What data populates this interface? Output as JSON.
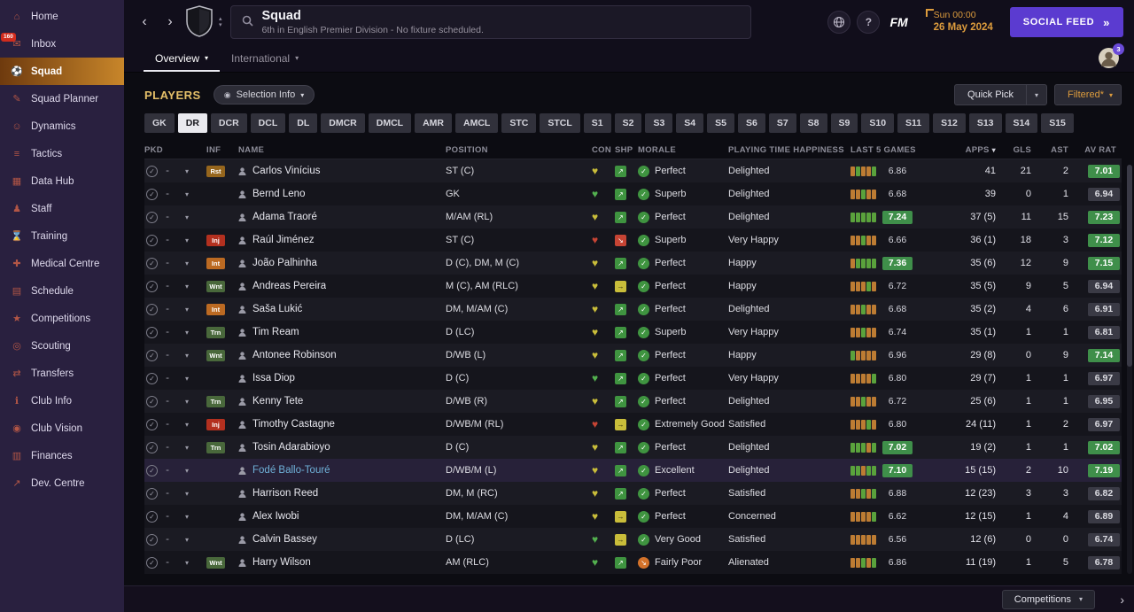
{
  "colors": {
    "accent_amber": "#dd9c3d",
    "accent_purple": "#5b3bd0",
    "rating_green": "#3f8f4a",
    "rating_gray": "#3a3a45"
  },
  "sidebar": {
    "items": [
      {
        "label": "Home",
        "icon": "home-icon",
        "glyph": "⌂"
      },
      {
        "label": "Inbox",
        "icon": "inbox-icon",
        "glyph": "✉",
        "badge": "160"
      },
      {
        "label": "Squad",
        "icon": "squad-icon",
        "glyph": "⚽",
        "active": true
      },
      {
        "label": "Squad Planner",
        "icon": "squad-planner-icon",
        "glyph": "✎"
      },
      {
        "label": "Dynamics",
        "icon": "dynamics-icon",
        "glyph": "☺"
      },
      {
        "label": "Tactics",
        "icon": "tactics-icon",
        "glyph": "≡"
      },
      {
        "label": "Data Hub",
        "icon": "data-hub-icon",
        "glyph": "▦"
      },
      {
        "label": "Staff",
        "icon": "staff-icon",
        "glyph": "♟"
      },
      {
        "label": "Training",
        "icon": "training-icon",
        "glyph": "⌛"
      },
      {
        "label": "Medical Centre",
        "icon": "medical-centre-icon",
        "glyph": "✚"
      },
      {
        "label": "Schedule",
        "icon": "schedule-icon",
        "glyph": "▤"
      },
      {
        "label": "Competitions",
        "icon": "competitions-icon",
        "glyph": "★"
      },
      {
        "label": "Scouting",
        "icon": "scouting-icon",
        "glyph": "◎"
      },
      {
        "label": "Transfers",
        "icon": "transfers-icon",
        "glyph": "⇄"
      },
      {
        "label": "Club Info",
        "icon": "club-info-icon",
        "glyph": "ℹ"
      },
      {
        "label": "Club Vision",
        "icon": "club-vision-icon",
        "glyph": "◉"
      },
      {
        "label": "Finances",
        "icon": "finances-icon",
        "glyph": "▥"
      },
      {
        "label": "Dev. Centre",
        "icon": "dev-centre-icon",
        "glyph": "↗"
      }
    ]
  },
  "header": {
    "title": "Squad",
    "subtitle": "6th in English Premier Division - No fixture scheduled.",
    "date_time": "Sun 00:00",
    "date": "26 May 2024",
    "social_feed_label": "SOCIAL FEED",
    "fm_label": "FM",
    "help_label": "?",
    "profile_badge": "3"
  },
  "tabs": [
    {
      "label": "Overview",
      "active": true
    },
    {
      "label": "International",
      "active": false
    }
  ],
  "toolbar": {
    "section_title": "PLAYERS",
    "selection_info_label": "Selection Info",
    "quick_pick_label": "Quick Pick",
    "filtered_label": "Filtered*"
  },
  "filters": [
    "GK",
    "DR",
    "DCR",
    "DCL",
    "DL",
    "DMCR",
    "DMCL",
    "AMR",
    "AMCL",
    "STC",
    "STCL",
    "S1",
    "S2",
    "S3",
    "S4",
    "S5",
    "S6",
    "S7",
    "S8",
    "S9",
    "S10",
    "S11",
    "S12",
    "S13",
    "S14",
    "S15"
  ],
  "filters_selected": "DR",
  "table": {
    "columns": [
      "PKD",
      "INF",
      "NAME",
      "POSITION",
      "CON",
      "SHP",
      "MORALE",
      "PLAYING TIME HAPPINESS",
      "LAST 5 GAMES",
      "APPS",
      "GLS",
      "AST",
      "AV RAT"
    ],
    "sort_column": "APPS",
    "players": [
      {
        "name": "Carlos Vinícius",
        "inf": "Rst",
        "inf_type": "amber",
        "position": "ST (C)",
        "con": "yellow",
        "shp": "green",
        "morale": "Perfect",
        "morale_tone": "green",
        "happiness": "Delighted",
        "last5_bars": [
          "o",
          "g",
          "o",
          "o",
          "g"
        ],
        "last5": "6.86",
        "apps": "41",
        "gls": "21",
        "ast": "2",
        "av_rat": "7.01",
        "highlight_row": false
      },
      {
        "name": "Bernd Leno",
        "inf": "",
        "inf_type": "",
        "position": "GK",
        "con": "green",
        "shp": "green",
        "morale": "Superb",
        "morale_tone": "green",
        "happiness": "Delighted",
        "last5_bars": [
          "o",
          "o",
          "g",
          "o",
          "o"
        ],
        "last5": "6.68",
        "apps": "39",
        "gls": "0",
        "ast": "1",
        "av_rat": "6.94",
        "highlight_row": false
      },
      {
        "name": "Adama Traoré",
        "inf": "",
        "inf_type": "",
        "position": "M/AM (RL)",
        "con": "yellow",
        "shp": "green",
        "morale": "Perfect",
        "morale_tone": "green",
        "happiness": "Delighted",
        "last5_bars": [
          "g",
          "g",
          "g",
          "g",
          "g"
        ],
        "last5": "7.24",
        "apps": "37 (5)",
        "gls": "11",
        "ast": "15",
        "av_rat": "7.23",
        "highlight_row": false
      },
      {
        "name": "Raúl Jiménez",
        "inf": "Inj",
        "inf_type": "red",
        "position": "ST (C)",
        "con": "red",
        "shp": "red",
        "morale": "Superb",
        "morale_tone": "green",
        "happiness": "Very Happy",
        "last5_bars": [
          "o",
          "o",
          "g",
          "o",
          "o"
        ],
        "last5": "6.66",
        "apps": "36 (1)",
        "gls": "18",
        "ast": "3",
        "av_rat": "7.12",
        "highlight_row": false
      },
      {
        "name": "João Palhinha",
        "inf": "Int",
        "inf_type": "orange",
        "position": "D (C), DM, M (C)",
        "con": "yellow",
        "shp": "green",
        "morale": "Perfect",
        "morale_tone": "green",
        "happiness": "Happy",
        "last5_bars": [
          "o",
          "g",
          "g",
          "g",
          "g"
        ],
        "last5": "7.36",
        "apps": "35 (6)",
        "gls": "12",
        "ast": "9",
        "av_rat": "7.15",
        "highlight_row": false
      },
      {
        "name": "Andreas Pereira",
        "inf": "Wnt",
        "inf_type": "green",
        "position": "M (C), AM (RLC)",
        "con": "yellow",
        "shp": "yellow",
        "morale": "Perfect",
        "morale_tone": "green",
        "happiness": "Happy",
        "last5_bars": [
          "o",
          "o",
          "o",
          "g",
          "o"
        ],
        "last5": "6.72",
        "apps": "35 (5)",
        "gls": "9",
        "ast": "5",
        "av_rat": "6.94",
        "highlight_row": false
      },
      {
        "name": "Saša Lukić",
        "inf": "Int",
        "inf_type": "orange",
        "position": "DM, M/AM (C)",
        "con": "yellow",
        "shp": "green",
        "morale": "Perfect",
        "morale_tone": "green",
        "happiness": "Delighted",
        "last5_bars": [
          "o",
          "o",
          "g",
          "o",
          "o"
        ],
        "last5": "6.68",
        "apps": "35 (2)",
        "gls": "4",
        "ast": "6",
        "av_rat": "6.91",
        "highlight_row": false
      },
      {
        "name": "Tim Ream",
        "inf": "Trn",
        "inf_type": "green",
        "position": "D (LC)",
        "con": "yellow",
        "shp": "green",
        "morale": "Superb",
        "morale_tone": "green",
        "happiness": "Very Happy",
        "last5_bars": [
          "o",
          "o",
          "g",
          "o",
          "o"
        ],
        "last5": "6.74",
        "apps": "35 (1)",
        "gls": "1",
        "ast": "1",
        "av_rat": "6.81",
        "highlight_row": false
      },
      {
        "name": "Antonee Robinson",
        "inf": "Wnt",
        "inf_type": "green",
        "position": "D/WB (L)",
        "con": "yellow",
        "shp": "green",
        "morale": "Perfect",
        "morale_tone": "green",
        "happiness": "Happy",
        "last5_bars": [
          "g",
          "o",
          "o",
          "o",
          "o"
        ],
        "last5": "6.96",
        "apps": "29 (8)",
        "gls": "0",
        "ast": "9",
        "av_rat": "7.14",
        "highlight_row": false
      },
      {
        "name": "Issa Diop",
        "inf": "",
        "inf_type": "",
        "position": "D (C)",
        "con": "green",
        "shp": "green",
        "morale": "Perfect",
        "morale_tone": "green",
        "happiness": "Very Happy",
        "last5_bars": [
          "o",
          "o",
          "o",
          "o",
          "g"
        ],
        "last5": "6.80",
        "apps": "29 (7)",
        "gls": "1",
        "ast": "1",
        "av_rat": "6.97",
        "highlight_row": false
      },
      {
        "name": "Kenny Tete",
        "inf": "Trn",
        "inf_type": "green",
        "position": "D/WB (R)",
        "con": "yellow",
        "shp": "green",
        "morale": "Perfect",
        "morale_tone": "green",
        "happiness": "Delighted",
        "last5_bars": [
          "o",
          "o",
          "g",
          "o",
          "o"
        ],
        "last5": "6.72",
        "apps": "25 (6)",
        "gls": "1",
        "ast": "1",
        "av_rat": "6.95",
        "highlight_row": false
      },
      {
        "name": "Timothy Castagne",
        "inf": "Inj",
        "inf_type": "red",
        "position": "D/WB/M (RL)",
        "con": "red",
        "shp": "yellow",
        "morale": "Extremely Good",
        "morale_tone": "green",
        "happiness": "Satisfied",
        "last5_bars": [
          "o",
          "o",
          "o",
          "g",
          "o"
        ],
        "last5": "6.80",
        "apps": "24 (11)",
        "gls": "1",
        "ast": "2",
        "av_rat": "6.97",
        "highlight_row": false
      },
      {
        "name": "Tosin Adarabioyo",
        "inf": "Trn",
        "inf_type": "green",
        "position": "D (C)",
        "con": "yellow",
        "shp": "green",
        "morale": "Perfect",
        "morale_tone": "green",
        "happiness": "Delighted",
        "last5_bars": [
          "g",
          "g",
          "g",
          "o",
          "g"
        ],
        "last5": "7.02",
        "apps": "19 (2)",
        "gls": "1",
        "ast": "1",
        "av_rat": "7.02",
        "highlight_row": false
      },
      {
        "name": "Fodé Ballo-Touré",
        "inf": "",
        "inf_type": "",
        "position": "D/WB/M (L)",
        "con": "yellow",
        "shp": "green",
        "morale": "Excellent",
        "morale_tone": "green",
        "happiness": "Delighted",
        "last5_bars": [
          "g",
          "g",
          "o",
          "g",
          "g"
        ],
        "last5": "7.10",
        "apps": "15 (15)",
        "gls": "2",
        "ast": "10",
        "av_rat": "7.19",
        "highlight_row": true
      },
      {
        "name": "Harrison Reed",
        "inf": "",
        "inf_type": "",
        "position": "DM, M (RC)",
        "con": "yellow",
        "shp": "green",
        "morale": "Perfect",
        "morale_tone": "green",
        "happiness": "Satisfied",
        "last5_bars": [
          "o",
          "o",
          "g",
          "o",
          "g"
        ],
        "last5": "6.88",
        "apps": "12 (23)",
        "gls": "3",
        "ast": "3",
        "av_rat": "6.82",
        "highlight_row": false
      },
      {
        "name": "Alex Iwobi",
        "inf": "",
        "inf_type": "",
        "position": "DM, M/AM (C)",
        "con": "yellow",
        "shp": "yellow",
        "morale": "Perfect",
        "morale_tone": "green",
        "happiness": "Concerned",
        "last5_bars": [
          "o",
          "o",
          "o",
          "o",
          "g"
        ],
        "last5": "6.62",
        "apps": "12 (15)",
        "gls": "1",
        "ast": "4",
        "av_rat": "6.89",
        "highlight_row": false
      },
      {
        "name": "Calvin Bassey",
        "inf": "",
        "inf_type": "",
        "position": "D (LC)",
        "con": "green",
        "shp": "yellow",
        "morale": "Very Good",
        "morale_tone": "green",
        "happiness": "Satisfied",
        "last5_bars": [
          "o",
          "o",
          "o",
          "o",
          "o"
        ],
        "last5": "6.56",
        "apps": "12 (6)",
        "gls": "0",
        "ast": "0",
        "av_rat": "6.74",
        "highlight_row": false
      },
      {
        "name": "Harry Wilson",
        "inf": "Wnt",
        "inf_type": "green",
        "position": "AM (RLC)",
        "con": "green",
        "shp": "green",
        "morale": "Fairly Poor",
        "morale_tone": "orange",
        "happiness": "Alienated",
        "last5_bars": [
          "o",
          "o",
          "g",
          "o",
          "g"
        ],
        "last5": "6.86",
        "apps": "11 (19)",
        "gls": "1",
        "ast": "5",
        "av_rat": "6.78",
        "highlight_row": false
      }
    ]
  },
  "footer": {
    "competitions_label": "Competitions"
  }
}
